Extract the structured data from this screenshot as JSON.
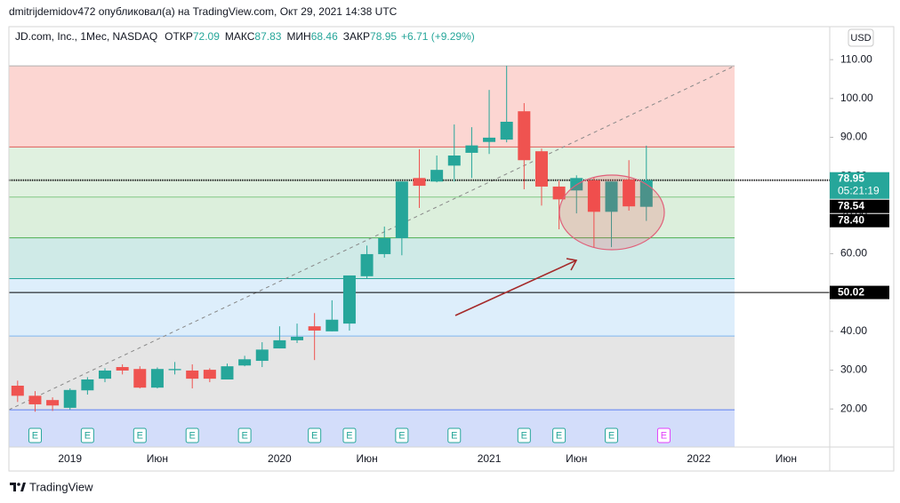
{
  "header": {
    "author_line": "dmitrijdemidov472 опубликовал(а) на TradingView.com, Окт 29, 2021 14:38 UTC"
  },
  "chart_data": {
    "type": "candlestick",
    "symbol": "JD.com, Inc., 1Мес, NASDAQ",
    "legend_labels": {
      "open": "ОТКР",
      "high": "МАКС",
      "low": "МИН",
      "close": "ЗАКР"
    },
    "change_label": "+6.71 (+9.29%)",
    "currency": "USD",
    "categories": [
      null,
      null,
      null,
      "2019",
      null,
      null,
      null,
      null,
      "Июн",
      null,
      null,
      null,
      null,
      null,
      null,
      "2020",
      null,
      null,
      null,
      null,
      "Июн",
      null,
      null,
      null,
      null,
      null,
      null,
      "2021",
      null,
      null,
      null,
      null,
      "Июн",
      null,
      null,
      null,
      null,
      null,
      null,
      "2022",
      null,
      null,
      null,
      null,
      "Июн",
      null,
      null
    ],
    "open": [
      26.0,
      23.4,
      22.3,
      20.3,
      24.8,
      27.8,
      30.8,
      30.3,
      25.5,
      30.0,
      29.9,
      30.1,
      27.6,
      31.2,
      32.4,
      35.6,
      37.7,
      41.3,
      40.0,
      42.0,
      54.2,
      59.9,
      64.0,
      79.5,
      78.6,
      82.7,
      86.0,
      88.8,
      89.4,
      96.7,
      86.4,
      77.3,
      76.3,
      78.9,
      70.8,
      79.1,
      72.09,
      null,
      null,
      null,
      null,
      null,
      null,
      null,
      null,
      null,
      null
    ],
    "high": [
      27.3,
      24.6,
      23.0,
      25.3,
      28.2,
      30.5,
      31.5,
      31.0,
      30.7,
      32.1,
      31.5,
      30.5,
      31.7,
      33.7,
      37.2,
      41.3,
      42.0,
      44.7,
      48.0,
      54.4,
      62.1,
      67.0,
      78.6,
      86.9,
      85.3,
      93.3,
      92.6,
      102.2,
      108.4,
      98.8,
      87.1,
      78.9,
      80.2,
      79.8,
      78.6,
      84.1,
      87.83,
      null,
      null,
      null,
      null,
      null,
      null,
      null,
      null,
      null,
      null
    ],
    "low": [
      21.8,
      19.3,
      19.5,
      19.8,
      23.7,
      26.9,
      28.9,
      25.3,
      25.3,
      28.9,
      25.3,
      26.9,
      27.6,
      31.0,
      30.8,
      35.6,
      37.0,
      32.6,
      40.0,
      40.2,
      53.7,
      59.0,
      59.6,
      71.8,
      78.4,
      78.6,
      79.5,
      85.7,
      88.7,
      76.6,
      72.4,
      66.3,
      70.4,
      61.7,
      61.7,
      71.1,
      68.46,
      null,
      null,
      null,
      null,
      null,
      null,
      null,
      null,
      null,
      null
    ],
    "close": [
      23.4,
      21.2,
      20.9,
      24.9,
      27.6,
      29.9,
      29.9,
      25.5,
      30.3,
      30.3,
      27.8,
      27.8,
      31.0,
      32.8,
      35.3,
      37.7,
      38.6,
      40.2,
      43.0,
      54.4,
      59.9,
      64.0,
      78.6,
      77.5,
      81.6,
      85.3,
      87.9,
      89.9,
      94.0,
      84.1,
      77.3,
      74.0,
      79.5,
      70.8,
      78.6,
      72.2,
      78.95,
      null,
      null,
      null,
      null,
      null,
      null,
      null,
      null,
      null,
      null
    ],
    "up_color": "#26a69a",
    "down_color": "#ef5350",
    "ylim": [
      10.2,
      118.5
    ],
    "yticks": [
      {
        "value": 20,
        "label": "20.00"
      },
      {
        "value": 30,
        "label": "30.00"
      },
      {
        "value": 40,
        "label": "40.00"
      },
      {
        "value": 50,
        "label": "50.00"
      },
      {
        "value": 60,
        "label": "60.00"
      },
      {
        "value": 70,
        "label": "70.00"
      },
      {
        "value": 80,
        "label": "80.00"
      },
      {
        "value": 90,
        "label": "90.00"
      },
      {
        "value": 100,
        "label": "100.00"
      },
      {
        "value": 110,
        "label": "110.00"
      }
    ],
    "fib_levels": [
      19.8,
      38.8,
      53.6,
      64.1,
      74.6,
      87.5,
      108.4
    ],
    "fib_band_colors": [
      "#d3ddfa",
      "#e5e5e5",
      "#ddeefb",
      "#cfeae7",
      "#dcefdc",
      "#e0f1e0",
      "#fcd6d2"
    ],
    "fib_line_colors": [
      "#5b7ff0",
      "#7fb6f0",
      "#26a69a",
      "#4caf50",
      "#81c784",
      "#e05a5a",
      "#b0b0b0"
    ],
    "price_lines": [
      {
        "value": 78.95,
        "label": "78.95",
        "sub": "05:21:19",
        "color": "#26a69a",
        "show_line": true
      },
      {
        "value": 78.54,
        "label": "78.54",
        "color": "#000000",
        "show_line": false
      },
      {
        "value": 78.4,
        "label": "78.40",
        "color": "#000000",
        "show_line": false
      },
      {
        "value": 50.02,
        "label": "50.02",
        "color": "#000000",
        "show_line": true
      }
    ],
    "earnings": {
      "label": "E",
      "months": [
        1,
        4,
        7,
        10,
        13,
        17,
        19,
        22,
        25,
        29,
        31,
        34
      ],
      "upcoming": [
        37
      ],
      "color": "#26a69a",
      "upcoming_color": "#e040fb"
    }
  },
  "footer": {
    "brand": "TradingView"
  }
}
